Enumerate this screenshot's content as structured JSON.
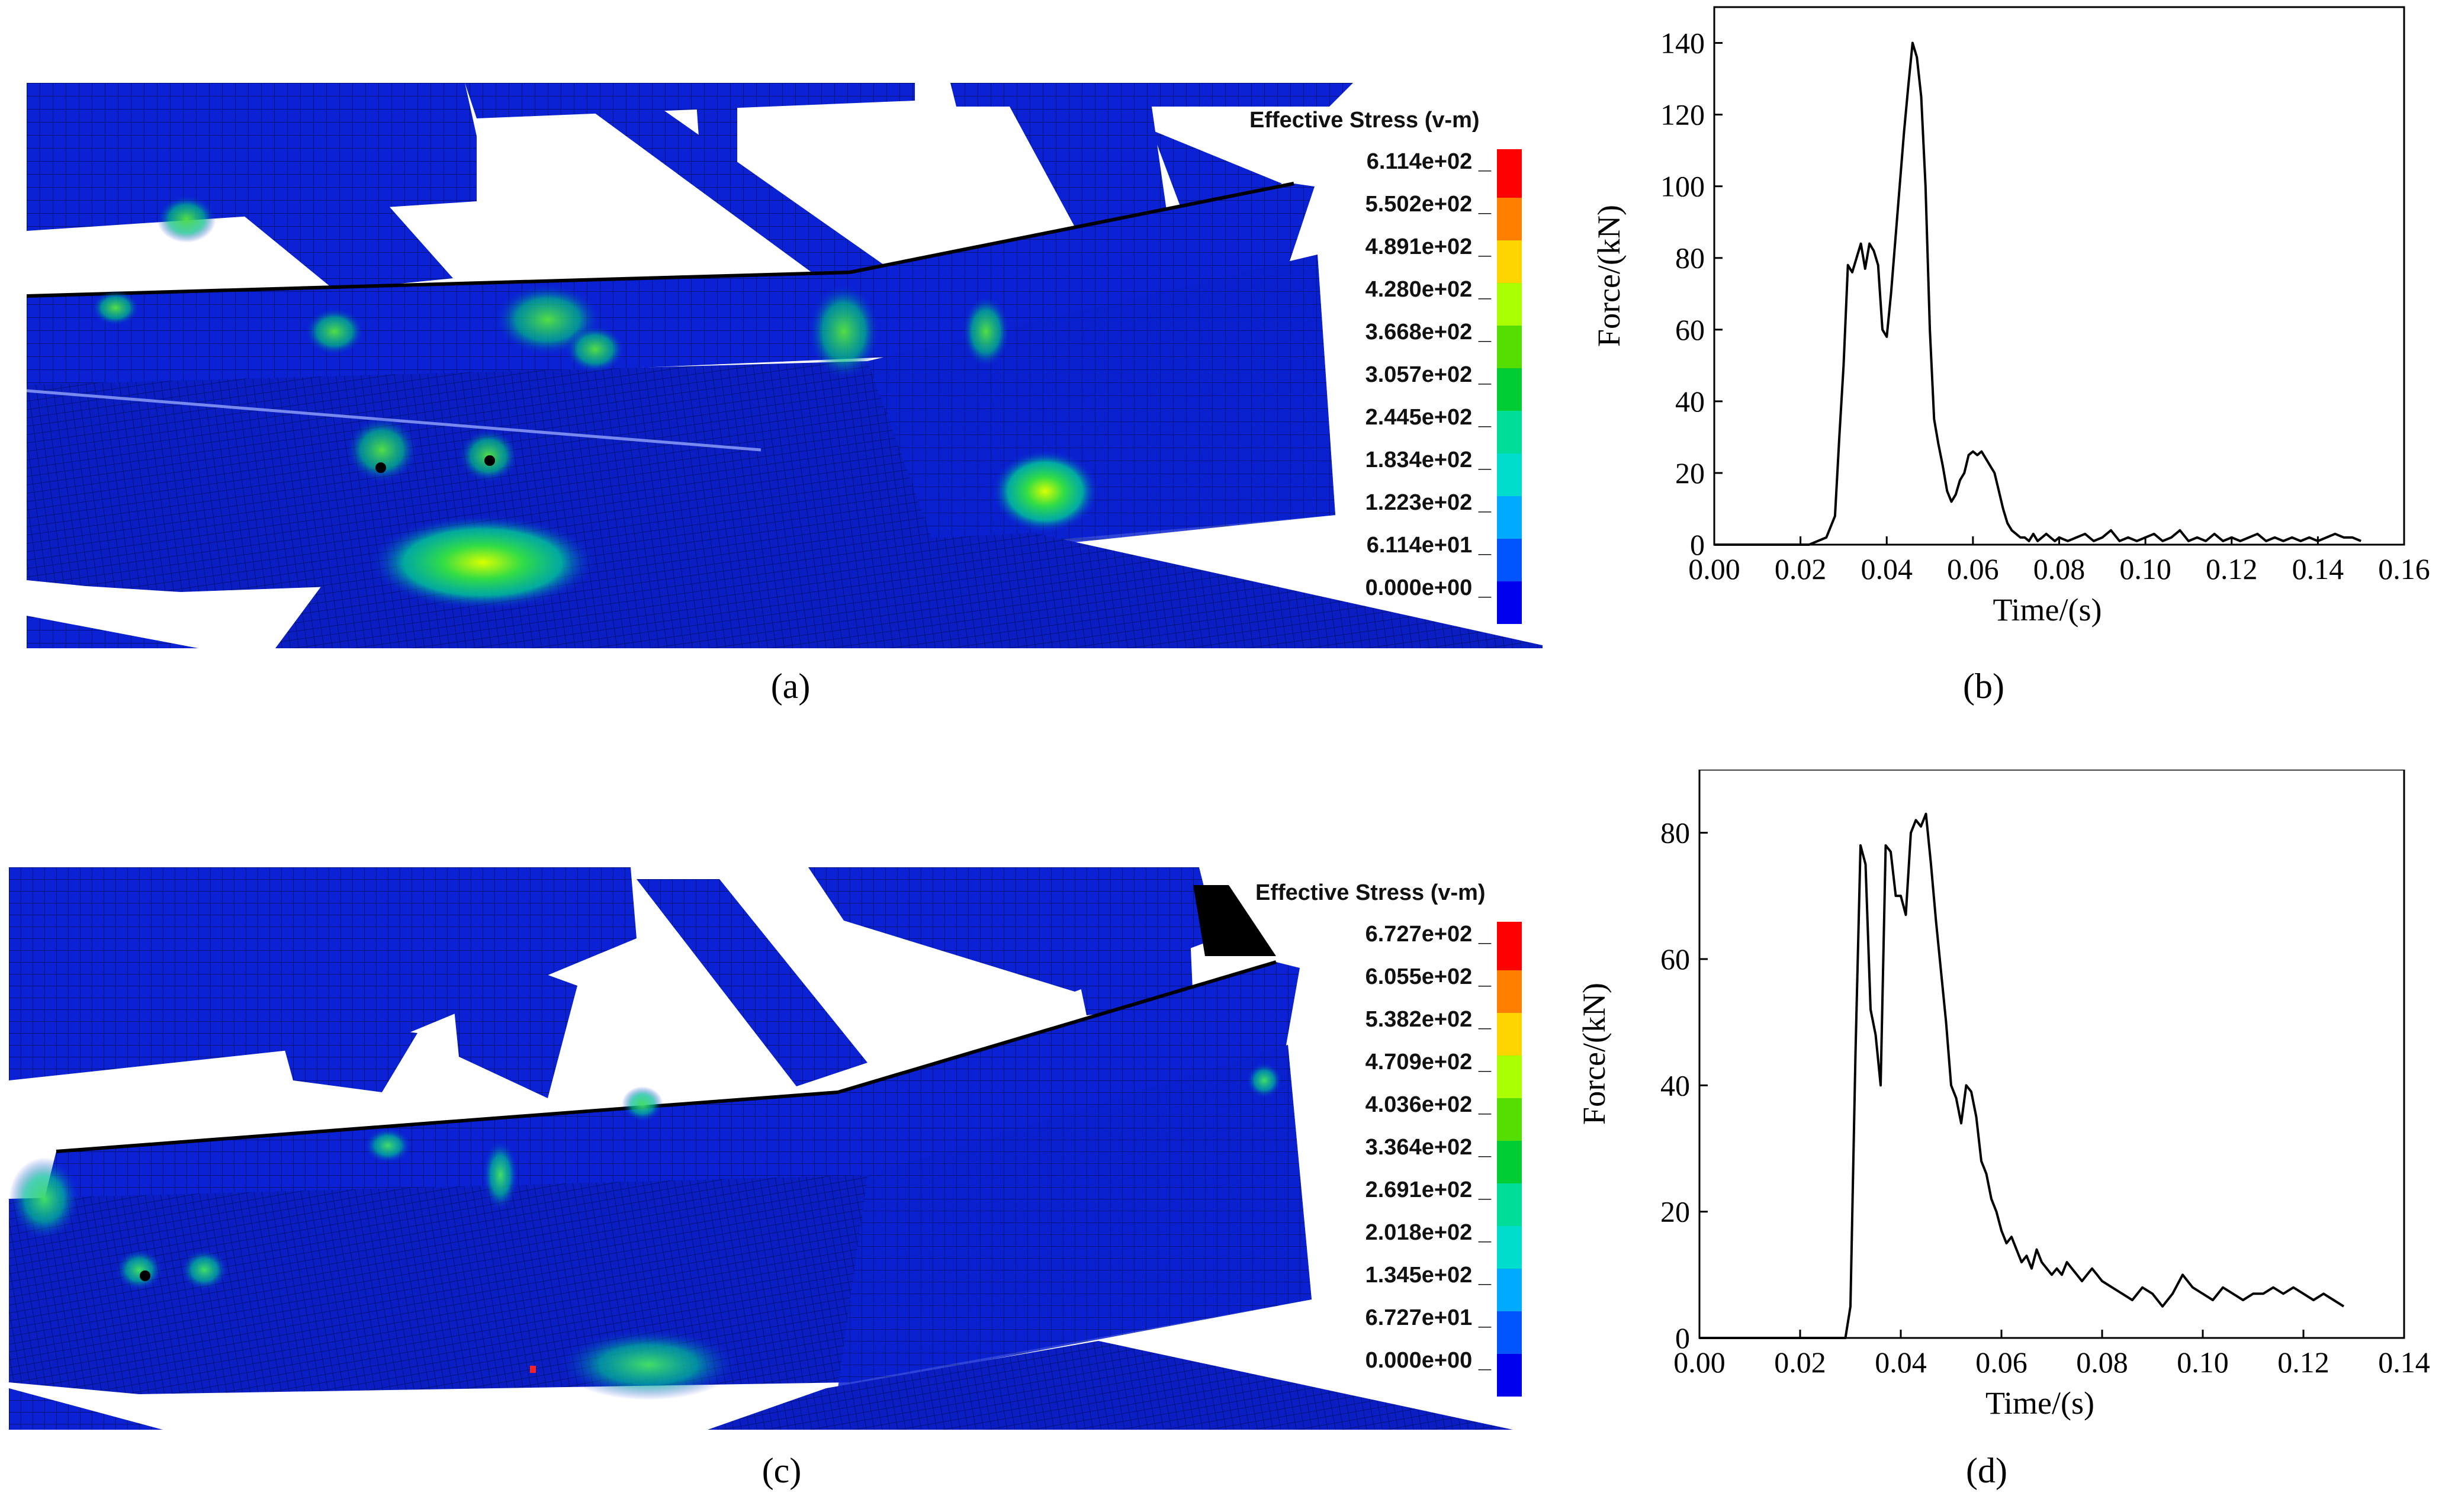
{
  "panels": {
    "a": {
      "caption": "(a)",
      "legend_title": "Effective Stress (v-m)",
      "legend_values": [
        "6.114e+02",
        "5.502e+02",
        "4.891e+02",
        "4.280e+02",
        "3.668e+02",
        "3.057e+02",
        "2.445e+02",
        "1.834e+02",
        "1.223e+02",
        "6.114e+01",
        "0.000e+00"
      ]
    },
    "b": {
      "caption": "(b)"
    },
    "c": {
      "caption": "(c)",
      "legend_title": "Effective Stress (v-m)",
      "legend_values": [
        "6.727e+02",
        "6.055e+02",
        "5.382e+02",
        "4.709e+02",
        "4.036e+02",
        "3.364e+02",
        "2.691e+02",
        "2.018e+02",
        "1.345e+02",
        "6.727e+01",
        "0.000e+00"
      ]
    },
    "d": {
      "caption": "(d)"
    }
  },
  "legend_colors": [
    "#ff0000",
    "#ff7f00",
    "#ffd500",
    "#aaff00",
    "#55dd00",
    "#00cc33",
    "#00dd99",
    "#00ddcc",
    "#00aaff",
    "#0055ff",
    "#0000ee"
  ],
  "colors": {
    "mesh_blue": "#0a1fc8",
    "mesh_line": "#00106e",
    "line": "#000000"
  },
  "chart_data": [
    {
      "type": "line",
      "panel": "b",
      "xlabel": "Time/(s)",
      "ylabel": "Force/(kN)",
      "xlim": [
        0,
        0.16
      ],
      "ylim": [
        0,
        150
      ],
      "xticks": [
        "0.00",
        "0.02",
        "0.04",
        "0.06",
        "0.08",
        "0.10",
        "0.12",
        "0.14",
        "0.16"
      ],
      "yticks": [
        "0",
        "20",
        "40",
        "60",
        "80",
        "100",
        "120",
        "140"
      ],
      "x": [
        0.0,
        0.022,
        0.026,
        0.028,
        0.029,
        0.03,
        0.031,
        0.032,
        0.033,
        0.034,
        0.035,
        0.036,
        0.037,
        0.038,
        0.039,
        0.04,
        0.041,
        0.042,
        0.043,
        0.044,
        0.045,
        0.046,
        0.047,
        0.048,
        0.049,
        0.05,
        0.051,
        0.052,
        0.053,
        0.054,
        0.055,
        0.056,
        0.057,
        0.058,
        0.059,
        0.06,
        0.061,
        0.062,
        0.063,
        0.064,
        0.065,
        0.066,
        0.067,
        0.068,
        0.069,
        0.07,
        0.071,
        0.072,
        0.073,
        0.074,
        0.075,
        0.076,
        0.077,
        0.078,
        0.079,
        0.08,
        0.082,
        0.084,
        0.086,
        0.088,
        0.09,
        0.092,
        0.094,
        0.096,
        0.098,
        0.1,
        0.102,
        0.104,
        0.106,
        0.108,
        0.11,
        0.112,
        0.114,
        0.116,
        0.118,
        0.12,
        0.122,
        0.124,
        0.126,
        0.128,
        0.13,
        0.132,
        0.134,
        0.136,
        0.138,
        0.14,
        0.142,
        0.144,
        0.146,
        0.148,
        0.15
      ],
      "y": [
        0,
        0,
        2,
        8,
        30,
        50,
        78,
        76,
        80,
        84,
        77,
        84,
        82,
        78,
        60,
        58,
        70,
        85,
        100,
        115,
        128,
        140,
        136,
        125,
        100,
        60,
        35,
        28,
        22,
        15,
        12,
        14,
        18,
        20,
        25,
        26,
        25,
        26,
        24,
        22,
        20,
        15,
        10,
        6,
        4,
        3,
        2,
        2,
        1,
        3,
        1,
        2,
        3,
        2,
        1,
        2,
        1,
        2,
        3,
        1,
        2,
        4,
        1,
        2,
        1,
        2,
        3,
        1,
        2,
        4,
        1,
        2,
        1,
        3,
        1,
        2,
        1,
        2,
        3,
        1,
        2,
        1,
        2,
        1,
        2,
        1,
        2,
        3,
        2,
        2,
        1
      ],
      "series_note_omit": ""
    },
    {
      "type": "line",
      "panel": "d",
      "xlabel": "Time/(s)",
      "ylabel": "Force/(kN)",
      "xlim": [
        0,
        0.14
      ],
      "ylim": [
        0,
        90
      ],
      "xticks": [
        "0.00",
        "0.02",
        "0.04",
        "0.06",
        "0.08",
        "0.10",
        "0.12",
        "0.14"
      ],
      "yticks": [
        "0",
        "20",
        "40",
        "60",
        "80"
      ],
      "x": [
        0.0,
        0.029,
        0.03,
        0.031,
        0.032,
        0.033,
        0.034,
        0.035,
        0.036,
        0.037,
        0.038,
        0.039,
        0.04,
        0.041,
        0.042,
        0.043,
        0.044,
        0.045,
        0.046,
        0.047,
        0.048,
        0.049,
        0.05,
        0.051,
        0.052,
        0.053,
        0.054,
        0.055,
        0.056,
        0.057,
        0.058,
        0.059,
        0.06,
        0.061,
        0.062,
        0.063,
        0.064,
        0.065,
        0.066,
        0.067,
        0.068,
        0.069,
        0.07,
        0.071,
        0.072,
        0.073,
        0.074,
        0.075,
        0.076,
        0.077,
        0.078,
        0.079,
        0.08,
        0.082,
        0.084,
        0.086,
        0.088,
        0.09,
        0.092,
        0.094,
        0.096,
        0.098,
        0.1,
        0.102,
        0.104,
        0.106,
        0.108,
        0.11,
        0.112,
        0.114,
        0.116,
        0.118,
        0.12,
        0.122,
        0.124,
        0.126,
        0.128
      ],
      "y": [
        0,
        0,
        5,
        45,
        78,
        75,
        52,
        48,
        40,
        78,
        77,
        70,
        70,
        67,
        80,
        82,
        81,
        83,
        75,
        66,
        58,
        50,
        40,
        38,
        34,
        40,
        39,
        35,
        28,
        26,
        22,
        20,
        17,
        15,
        16,
        14,
        12,
        13,
        11,
        14,
        12,
        11,
        10,
        11,
        10,
        12,
        11,
        10,
        9,
        10,
        11,
        10,
        9,
        8,
        7,
        6,
        8,
        7,
        5,
        7,
        10,
        8,
        7,
        6,
        8,
        7,
        6,
        7,
        7,
        8,
        7,
        8,
        7,
        6,
        7,
        6,
        5
      ],
      "series_note_omit": ""
    }
  ]
}
